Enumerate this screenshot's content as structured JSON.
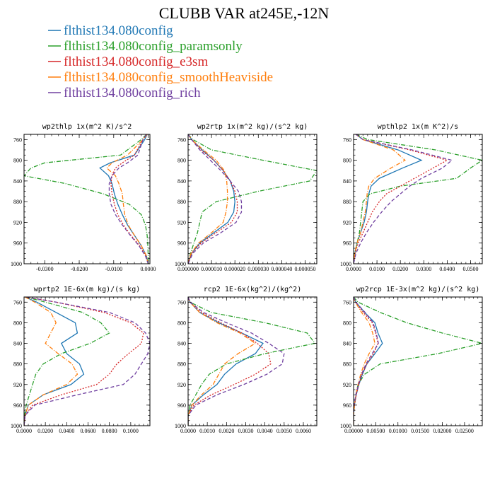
{
  "title": "CLUBB VAR at245E,-12N",
  "colors": {
    "config": "#1f77b4",
    "paramsonly": "#2ca02c",
    "e3sm": "#d62728",
    "smoothHeaviside": "#ff7f0e",
    "rich": "#7040a0"
  },
  "legend": [
    {
      "label": "flthist134.080config",
      "color": "#1f77b4",
      "dash": "solid"
    },
    {
      "label": "flthist134.080config_paramsonly",
      "color": "#2ca02c",
      "dash": "dashdot"
    },
    {
      "label": "flthist134.080config_e3sm",
      "color": "#d62728",
      "dash": "dot"
    },
    {
      "label": "flthist134.080config_smoothHeaviside",
      "color": "#ff7f0e",
      "dash": "dashdot"
    },
    {
      "label": "flthist134.080config_rich",
      "color": "#7040a0",
      "dash": "dash"
    }
  ],
  "chart_data": [
    {
      "type": "line",
      "title": "wp2thlp  1x(m^2 K)/s^2",
      "xlim": [
        -0.036,
        0.0005
      ],
      "ylim": [
        750,
        1000
      ],
      "y_reversed": true,
      "xticks": [
        -0.03,
        -0.02,
        -0.01,
        0.0
      ],
      "xtick_labels": [
        "-0.0300",
        "-0.0200",
        "-0.0100",
        "0.0000"
      ],
      "yticks": [
        760,
        800,
        840,
        880,
        920,
        960,
        1000
      ],
      "ytick_labels": [
        "760",
        "800",
        "840",
        "880",
        "920",
        "960",
        "1000"
      ],
      "y": [
        750,
        760,
        790,
        805,
        815,
        830,
        845,
        865,
        885,
        905,
        925,
        945,
        965,
        985,
        1000
      ],
      "series": [
        {
          "key": "config",
          "values": [
            -0.0003,
            -0.001,
            -0.004,
            -0.011,
            -0.014,
            -0.0115,
            -0.0105,
            -0.0098,
            -0.0088,
            -0.0075,
            -0.006,
            -0.004,
            -0.002,
            -0.0005,
            0.0
          ]
        },
        {
          "key": "paramsonly",
          "values": [
            -0.0005,
            -0.002,
            -0.008,
            -0.03,
            -0.034,
            -0.036,
            -0.024,
            -0.013,
            -0.0055,
            -0.002,
            -0.0008,
            -0.0003,
            -0.0001,
            0.0,
            0.0
          ]
        },
        {
          "key": "e3sm",
          "values": [
            -0.0005,
            -0.0015,
            -0.004,
            -0.0075,
            -0.0095,
            -0.0105,
            -0.0108,
            -0.0105,
            -0.0098,
            -0.0088,
            -0.0072,
            -0.005,
            -0.0025,
            -0.0007,
            0.0
          ]
        },
        {
          "key": "smoothHeaviside",
          "values": [
            -0.0003,
            -0.0015,
            -0.006,
            -0.0105,
            -0.012,
            -0.0095,
            -0.0085,
            -0.0075,
            -0.0072,
            -0.0068,
            -0.0058,
            -0.004,
            -0.002,
            -0.0005,
            0.0
          ]
        },
        {
          "key": "rich",
          "values": [
            -0.0005,
            -0.0015,
            -0.003,
            -0.006,
            -0.0085,
            -0.0105,
            -0.0113,
            -0.0113,
            -0.0108,
            -0.0095,
            -0.0075,
            -0.0052,
            -0.0027,
            -0.0008,
            0.0
          ]
        }
      ]
    },
    {
      "type": "line",
      "title": "wp2rtp  1x(m^2 kg)/(s^2 kg)",
      "xlim": [
        0,
        5.5e-05
      ],
      "ylim": [
        750,
        1000
      ],
      "y_reversed": true,
      "xticks": [
        0,
        1e-05,
        2e-05,
        3e-05,
        4e-05,
        5e-05
      ],
      "xtick_labels": [
        "0.000000",
        "0.000010",
        "0.000020",
        "0.000030",
        "0.000040",
        "0.000050"
      ],
      "yticks": [
        760,
        800,
        840,
        880,
        920,
        960,
        1000
      ],
      "ytick_labels": [
        "760",
        "800",
        "840",
        "880",
        "920",
        "960",
        "1000"
      ],
      "y": [
        750,
        760,
        780,
        800,
        820,
        840,
        860,
        880,
        900,
        920,
        940,
        960,
        980,
        1000
      ],
      "series": [
        {
          "key": "config",
          "values": [
            0.0,
            1.5e-06,
            6e-06,
            1.1e-05,
            1.5e-05,
            1.8e-05,
            1.95e-05,
            2e-05,
            1.95e-05,
            1.7e-05,
            1.1e-05,
            5e-06,
            1.5e-06,
            0.0
          ]
        },
        {
          "key": "paramsonly",
          "values": [
            0.0,
            2e-06,
            1e-05,
            3.2e-05,
            5.5e-05,
            5.2e-05,
            3e-05,
            1.2e-05,
            6e-06,
            5e-06,
            4e-06,
            2.5e-06,
            1e-06,
            0.0
          ]
        },
        {
          "key": "e3sm",
          "values": [
            0.0,
            1.5e-06,
            5.5e-06,
            1.1e-05,
            1.5e-05,
            1.8e-05,
            2e-05,
            2.1e-05,
            2.1e-05,
            1.85e-05,
            1.2e-05,
            5.5e-06,
            1.5e-06,
            0.0
          ]
        },
        {
          "key": "smoothHeaviside",
          "values": [
            0.0,
            1.5e-06,
            6.5e-06,
            1.2e-05,
            1.55e-05,
            1.65e-05,
            1.68e-05,
            1.68e-05,
            1.62e-05,
            1.5e-05,
            1e-05,
            4.5e-06,
            1.2e-06,
            0.0
          ]
        },
        {
          "key": "rich",
          "values": [
            0.0,
            1.5e-06,
            5e-06,
            9.5e-06,
            1.4e-05,
            1.8e-05,
            2.15e-05,
            2.28e-05,
            2.28e-05,
            2.05e-05,
            1.4e-05,
            6.5e-06,
            2e-06,
            0.0
          ]
        }
      ]
    },
    {
      "type": "line",
      "title": "wpthlp2  1x(m K^2)/s",
      "xlim": [
        0,
        0.055
      ],
      "ylim": [
        750,
        1000
      ],
      "y_reversed": true,
      "xticks": [
        0,
        0.01,
        0.02,
        0.03,
        0.04,
        0.05
      ],
      "xtick_labels": [
        "0.0000",
        "0.0100",
        "0.0200",
        "0.0300",
        "0.0400",
        "0.0500"
      ],
      "yticks": [
        760,
        800,
        840,
        880,
        920,
        960,
        1000
      ],
      "ytick_labels": [
        "760",
        "800",
        "840",
        "880",
        "920",
        "960",
        "1000"
      ],
      "y": [
        750,
        760,
        780,
        800,
        815,
        835,
        850,
        865,
        880,
        900,
        920,
        940,
        960,
        980,
        1000
      ],
      "series": [
        {
          "key": "config",
          "values": [
            0.001,
            0.004,
            0.019,
            0.029,
            0.021,
            0.011,
            0.0075,
            0.0065,
            0.006,
            0.0055,
            0.0045,
            0.003,
            0.0015,
            0.0005,
            0.0
          ]
        },
        {
          "key": "paramsonly",
          "values": [
            0.001,
            0.006,
            0.035,
            0.055,
            0.05,
            0.044,
            0.02,
            0.007,
            0.004,
            0.0035,
            0.003,
            0.0025,
            0.0015,
            0.0005,
            0.0
          ]
        },
        {
          "key": "e3sm",
          "values": [
            0.001,
            0.004,
            0.024,
            0.04,
            0.034,
            0.026,
            0.02,
            0.014,
            0.011,
            0.008,
            0.006,
            0.004,
            0.002,
            0.0006,
            0.0
          ]
        },
        {
          "key": "smoothHeaviside",
          "values": [
            0.001,
            0.004,
            0.017,
            0.022,
            0.016,
            0.009,
            0.0065,
            0.0058,
            0.0055,
            0.005,
            0.004,
            0.003,
            0.0015,
            0.0005,
            0.0
          ]
        },
        {
          "key": "rich",
          "values": [
            0.001,
            0.004,
            0.025,
            0.042,
            0.038,
            0.029,
            0.024,
            0.02,
            0.016,
            0.012,
            0.0085,
            0.0055,
            0.003,
            0.001,
            0.0
          ]
        }
      ]
    },
    {
      "type": "line",
      "title": "wprtp2  1E-6x(m kg)/(s kg)",
      "xlim": [
        0,
        0.118
      ],
      "ylim": [
        750,
        1000
      ],
      "y_reversed": true,
      "xticks": [
        0,
        0.02,
        0.04,
        0.06,
        0.08,
        0.1
      ],
      "xtick_labels": [
        "0.0000",
        "0.0200",
        "0.0400",
        "0.0600",
        "0.0800",
        "0.1000"
      ],
      "yticks": [
        760,
        800,
        840,
        880,
        920,
        960,
        1000
      ],
      "ytick_labels": [
        "760",
        "800",
        "840",
        "880",
        "920",
        "960",
        "1000"
      ],
      "y": [
        750,
        760,
        780,
        800,
        820,
        840,
        860,
        880,
        900,
        920,
        940,
        960,
        980,
        1000
      ],
      "series": [
        {
          "key": "config",
          "values": [
            0.001,
            0.012,
            0.03,
            0.048,
            0.05,
            0.035,
            0.04,
            0.052,
            0.056,
            0.044,
            0.018,
            0.004,
            0.001,
            0.0
          ]
        },
        {
          "key": "paramsonly",
          "values": [
            0.0015,
            0.02,
            0.055,
            0.072,
            0.08,
            0.062,
            0.035,
            0.018,
            0.011,
            0.008,
            0.005,
            0.002,
            0.0005,
            0.0
          ]
        },
        {
          "key": "e3sm",
          "values": [
            0.002,
            0.03,
            0.075,
            0.1,
            0.112,
            0.11,
            0.098,
            0.087,
            0.08,
            0.068,
            0.035,
            0.008,
            0.001,
            0.0
          ]
        },
        {
          "key": "smoothHeaviside",
          "values": [
            0.001,
            0.01,
            0.025,
            0.03,
            0.025,
            0.02,
            0.032,
            0.045,
            0.05,
            0.04,
            0.018,
            0.004,
            0.001,
            0.0
          ]
        },
        {
          "key": "rich",
          "values": [
            0.002,
            0.03,
            0.08,
            0.104,
            0.114,
            0.118,
            0.116,
            0.11,
            0.104,
            0.093,
            0.05,
            0.01,
            0.001,
            0.0
          ]
        }
      ]
    },
    {
      "type": "line",
      "title": "rcp2  1E-6x(kg^2)/(kg^2)",
      "xlim": [
        0,
        0.0067
      ],
      "ylim": [
        750,
        1000
      ],
      "y_reversed": true,
      "xticks": [
        0,
        0.001,
        0.002,
        0.003,
        0.004,
        0.005,
        0.006
      ],
      "xtick_labels": [
        "0.0000",
        "0.0010",
        "0.0020",
        "0.0030",
        "0.0040",
        "0.0050",
        "0.0060"
      ],
      "yticks": [
        760,
        800,
        840,
        880,
        920,
        960,
        1000
      ],
      "ytick_labels": [
        "760",
        "800",
        "840",
        "880",
        "920",
        "960",
        "1000"
      ],
      "y": [
        750,
        760,
        780,
        800,
        820,
        840,
        860,
        880,
        900,
        920,
        940,
        960,
        980,
        1000
      ],
      "series": [
        {
          "key": "config",
          "values": [
            0.0,
            0.0001,
            0.0006,
            0.0016,
            0.0028,
            0.0039,
            0.0035,
            0.0025,
            0.0019,
            0.0015,
            0.0008,
            0.0002,
            0.0,
            0.0
          ]
        },
        {
          "key": "paramsonly",
          "values": [
            0.0,
            0.0001,
            0.0012,
            0.004,
            0.0062,
            0.0066,
            0.004,
            0.002,
            0.0011,
            0.0007,
            0.0004,
            0.0001,
            0.0,
            0.0
          ]
        },
        {
          "key": "e3sm",
          "values": [
            0.0,
            0.0001,
            0.0007,
            0.0017,
            0.0028,
            0.0036,
            0.0042,
            0.0043,
            0.0035,
            0.0024,
            0.0012,
            0.0003,
            0.0,
            0.0
          ]
        },
        {
          "key": "smoothHeaviside",
          "values": [
            0.0,
            0.0001,
            0.0006,
            0.0015,
            0.0027,
            0.0035,
            0.0026,
            0.0019,
            0.0016,
            0.0013,
            0.0007,
            0.0002,
            0.0,
            0.0
          ]
        },
        {
          "key": "rich",
          "values": [
            0.0,
            0.0001,
            0.0008,
            0.002,
            0.0033,
            0.0042,
            0.005,
            0.0049,
            0.0041,
            0.0029,
            0.0015,
            0.0004,
            0.0,
            0.0
          ]
        }
      ]
    },
    {
      "type": "line",
      "title": "wp2rcp  1E-3x(m^2 kg)/(s^2 kg)",
      "xlim": [
        0,
        0.029
      ],
      "ylim": [
        750,
        1000
      ],
      "y_reversed": true,
      "xticks": [
        0,
        0.005,
        0.01,
        0.015,
        0.02,
        0.025
      ],
      "xtick_labels": [
        "0.00000",
        "0.00500",
        "0.01000",
        "0.01500",
        "0.02000",
        "0.02500"
      ],
      "yticks": [
        760,
        800,
        840,
        880,
        920,
        960,
        1000
      ],
      "ytick_labels": [
        "760",
        "800",
        "840",
        "880",
        "920",
        "960",
        "1000"
      ],
      "y": [
        750,
        760,
        780,
        800,
        820,
        840,
        860,
        880,
        900,
        920,
        940,
        960,
        980,
        1000
      ],
      "series": [
        {
          "key": "config",
          "values": [
            0.0,
            0.0005,
            0.0025,
            0.0048,
            0.0055,
            0.0065,
            0.0048,
            0.003,
            0.002,
            0.0012,
            0.0006,
            0.0002,
            0.0,
            0.0
          ]
        },
        {
          "key": "paramsonly",
          "values": [
            0.0,
            0.001,
            0.006,
            0.012,
            0.02,
            0.029,
            0.019,
            0.006,
            0.0025,
            0.001,
            0.0005,
            0.0002,
            0.0,
            0.0
          ]
        },
        {
          "key": "e3sm",
          "values": [
            0.0,
            0.0004,
            0.0022,
            0.0042,
            0.005,
            0.0055,
            0.0045,
            0.003,
            0.0019,
            0.0012,
            0.0006,
            0.0002,
            0.0,
            0.0
          ]
        },
        {
          "key": "smoothHeaviside",
          "values": [
            0.0,
            0.0004,
            0.0018,
            0.0035,
            0.0043,
            0.0048,
            0.0035,
            0.0024,
            0.0016,
            0.001,
            0.0005,
            0.0002,
            0.0,
            0.0
          ]
        },
        {
          "key": "rich",
          "values": [
            0.0,
            0.0005,
            0.0026,
            0.0044,
            0.0051,
            0.0056,
            0.0042,
            0.0028,
            0.0018,
            0.0011,
            0.0005,
            0.0001,
            0.0,
            0.0
          ]
        }
      ]
    }
  ]
}
